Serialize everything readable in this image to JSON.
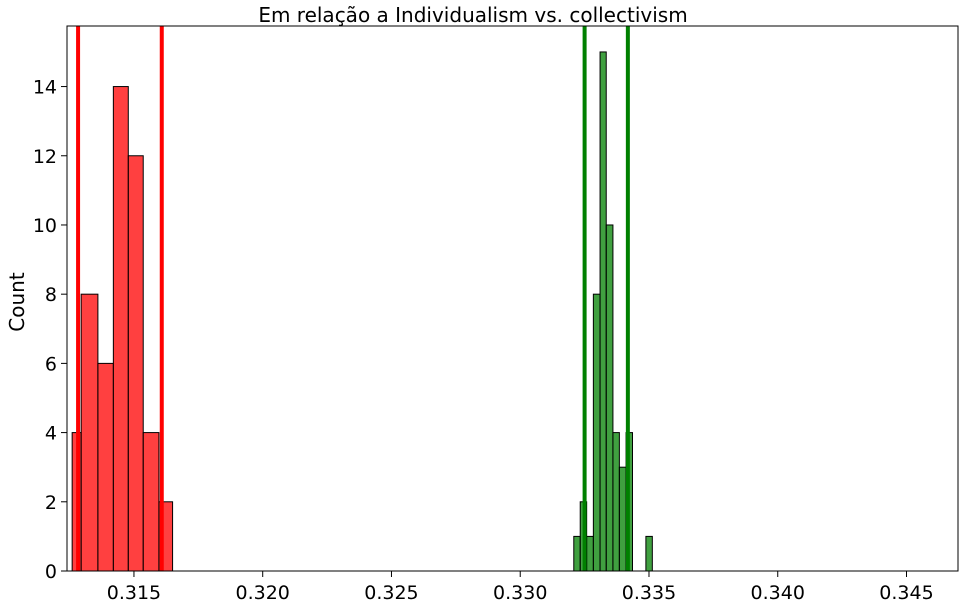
{
  "chart_data": {
    "type": "histogram",
    "title": "Em relação a Individualism vs. collectivism",
    "xlabel": "",
    "ylabel": "Count",
    "xlim": [
      0.3124,
      0.347
    ],
    "ylim": [
      0,
      15.75
    ],
    "xticks": [
      0.315,
      0.32,
      0.325,
      0.33,
      0.335,
      0.34,
      0.345
    ],
    "xtick_labels": [
      "0.315",
      "0.320",
      "0.325",
      "0.330",
      "0.335",
      "0.340",
      "0.345"
    ],
    "yticks": [
      0,
      2,
      4,
      6,
      8,
      10,
      12,
      14
    ],
    "ytick_labels": [
      "0",
      "2",
      "4",
      "6",
      "8",
      "10",
      "12",
      "14"
    ],
    "grid": false,
    "series": [
      {
        "color": "#ff0000",
        "bins": [
          {
            "x0": 0.3126,
            "x1": 0.31295,
            "count": 4
          },
          {
            "x0": 0.31295,
            "x1": 0.3136,
            "count": 8
          },
          {
            "x0": 0.3136,
            "x1": 0.3142,
            "count": 6
          },
          {
            "x0": 0.3142,
            "x1": 0.31478,
            "count": 14
          },
          {
            "x0": 0.31478,
            "x1": 0.31536,
            "count": 12
          },
          {
            "x0": 0.31536,
            "x1": 0.31597,
            "count": 4
          },
          {
            "x0": 0.31597,
            "x1": 0.3165,
            "count": 2
          }
        ],
        "vlines": [
          0.31283,
          0.31608
        ]
      },
      {
        "color": "#008000",
        "bins": [
          {
            "x0": 0.33208,
            "x1": 0.33233,
            "count": 1
          },
          {
            "x0": 0.33233,
            "x1": 0.33258,
            "count": 2
          },
          {
            "x0": 0.33258,
            "x1": 0.33284,
            "count": 1
          },
          {
            "x0": 0.33284,
            "x1": 0.3331,
            "count": 8
          },
          {
            "x0": 0.3331,
            "x1": 0.33334,
            "count": 15
          },
          {
            "x0": 0.33334,
            "x1": 0.3336,
            "count": 10
          },
          {
            "x0": 0.3336,
            "x1": 0.33385,
            "count": 4
          },
          {
            "x0": 0.33385,
            "x1": 0.33411,
            "count": 3
          },
          {
            "x0": 0.33411,
            "x1": 0.33436,
            "count": 4
          },
          {
            "x0": 0.33436,
            "x1": 0.33462,
            "count": 0
          },
          {
            "x0": 0.33462,
            "x1": 0.33488,
            "count": 0
          },
          {
            "x0": 0.33488,
            "x1": 0.33513,
            "count": 1
          }
        ],
        "vlines": [
          0.3325,
          0.33418
        ]
      }
    ]
  }
}
